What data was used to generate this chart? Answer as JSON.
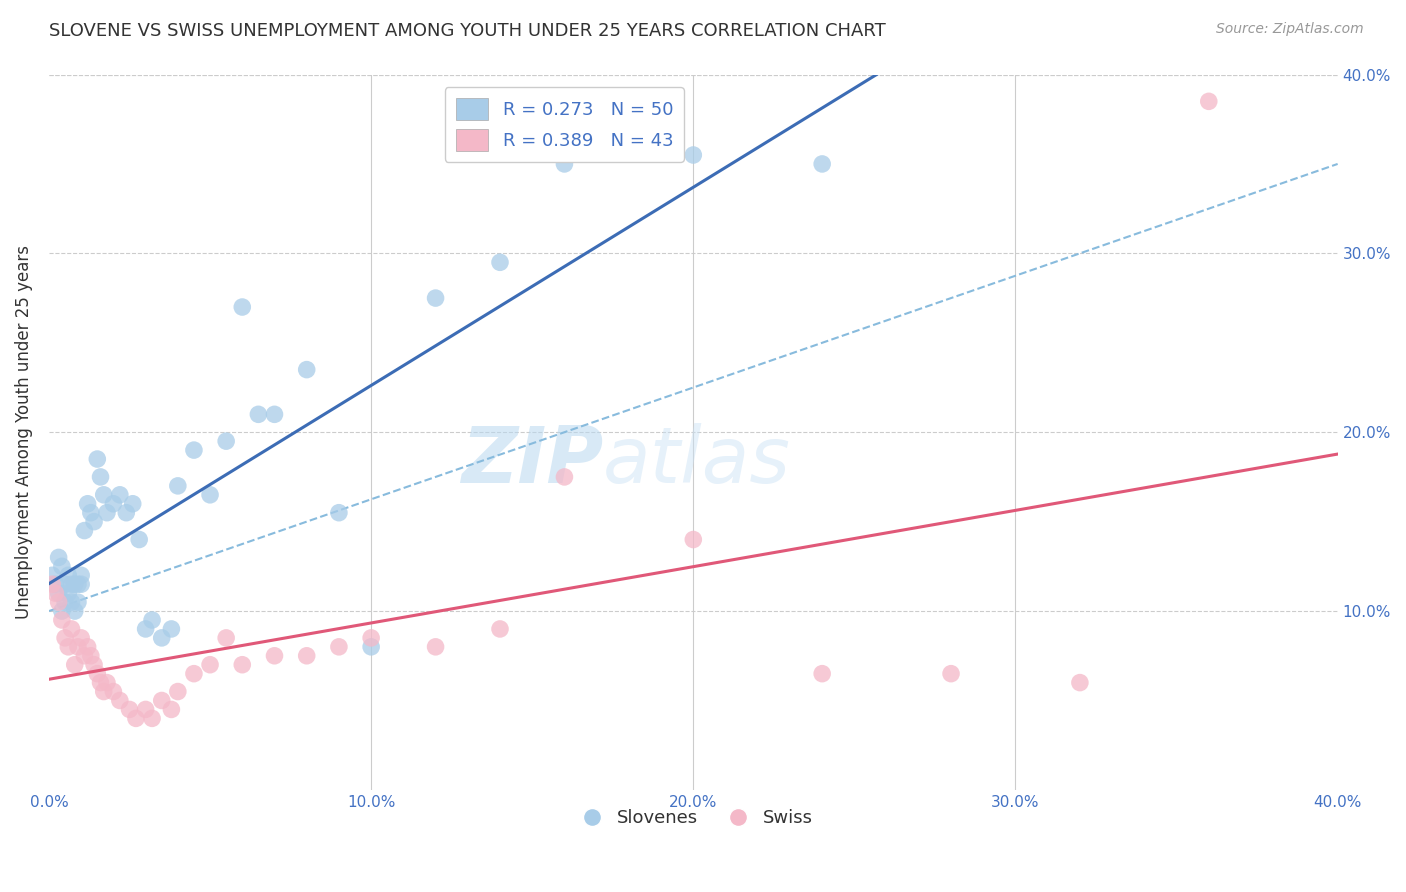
{
  "title": "SLOVENE VS SWISS UNEMPLOYMENT AMONG YOUTH UNDER 25 YEARS CORRELATION CHART",
  "source": "Source: ZipAtlas.com",
  "ylabel": "Unemployment Among Youth under 25 years",
  "xlim": [
    0.0,
    0.4
  ],
  "ylim": [
    0.0,
    0.4
  ],
  "xtick_values": [
    0.0,
    0.1,
    0.2,
    0.3,
    0.4
  ],
  "xtick_labels": [
    "0.0%",
    "10.0%",
    "20.0%",
    "30.0%",
    "40.0%"
  ],
  "ytick_values": [
    0.0,
    0.1,
    0.2,
    0.3,
    0.4
  ],
  "ytick_labels_right": [
    "",
    "10.0%",
    "20.0%",
    "30.0%",
    "40.0%"
  ],
  "watermark_zip": "ZIP",
  "watermark_atlas": "atlas",
  "legend_blue_label": "R = 0.273   N = 50",
  "legend_pink_label": "R = 0.389   N = 43",
  "legend_bottom_labels": [
    "Slovenes",
    "Swiss"
  ],
  "blue_color": "#a8cce8",
  "pink_color": "#f4b8c8",
  "blue_line_color": "#3c6cb5",
  "pink_line_color": "#e05878",
  "dash_line_color": "#88bbdd",
  "background_color": "#ffffff",
  "slovene_x": [
    0.001,
    0.002,
    0.003,
    0.003,
    0.004,
    0.004,
    0.005,
    0.005,
    0.006,
    0.006,
    0.007,
    0.007,
    0.008,
    0.008,
    0.009,
    0.009,
    0.01,
    0.01,
    0.011,
    0.012,
    0.013,
    0.014,
    0.015,
    0.016,
    0.017,
    0.018,
    0.02,
    0.022,
    0.024,
    0.026,
    0.028,
    0.03,
    0.032,
    0.035,
    0.038,
    0.04,
    0.045,
    0.05,
    0.055,
    0.06,
    0.065,
    0.07,
    0.08,
    0.09,
    0.1,
    0.12,
    0.14,
    0.16,
    0.2,
    0.24
  ],
  "slovene_y": [
    0.12,
    0.115,
    0.13,
    0.11,
    0.125,
    0.1,
    0.115,
    0.105,
    0.12,
    0.11,
    0.115,
    0.105,
    0.115,
    0.1,
    0.115,
    0.105,
    0.12,
    0.115,
    0.145,
    0.16,
    0.155,
    0.15,
    0.185,
    0.175,
    0.165,
    0.155,
    0.16,
    0.165,
    0.155,
    0.16,
    0.14,
    0.09,
    0.095,
    0.085,
    0.09,
    0.17,
    0.19,
    0.165,
    0.195,
    0.27,
    0.21,
    0.21,
    0.235,
    0.155,
    0.08,
    0.275,
    0.295,
    0.35,
    0.355,
    0.35
  ],
  "swiss_x": [
    0.001,
    0.002,
    0.003,
    0.004,
    0.005,
    0.006,
    0.007,
    0.008,
    0.009,
    0.01,
    0.011,
    0.012,
    0.013,
    0.014,
    0.015,
    0.016,
    0.017,
    0.018,
    0.02,
    0.022,
    0.025,
    0.027,
    0.03,
    0.032,
    0.035,
    0.038,
    0.04,
    0.045,
    0.05,
    0.055,
    0.06,
    0.07,
    0.08,
    0.09,
    0.1,
    0.12,
    0.14,
    0.16,
    0.2,
    0.24,
    0.28,
    0.32,
    0.36
  ],
  "swiss_y": [
    0.115,
    0.11,
    0.105,
    0.095,
    0.085,
    0.08,
    0.09,
    0.07,
    0.08,
    0.085,
    0.075,
    0.08,
    0.075,
    0.07,
    0.065,
    0.06,
    0.055,
    0.06,
    0.055,
    0.05,
    0.045,
    0.04,
    0.045,
    0.04,
    0.05,
    0.045,
    0.055,
    0.065,
    0.07,
    0.085,
    0.07,
    0.075,
    0.075,
    0.08,
    0.085,
    0.08,
    0.09,
    0.175,
    0.14,
    0.065,
    0.065,
    0.06,
    0.385
  ]
}
